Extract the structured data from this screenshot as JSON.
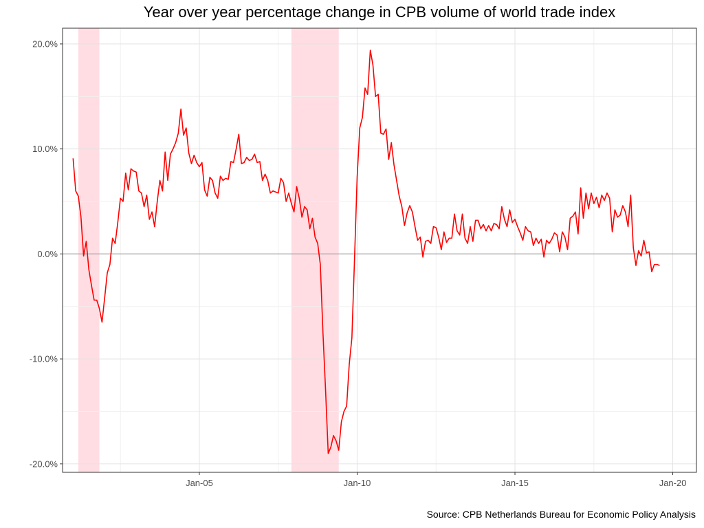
{
  "chart_data": {
    "type": "line",
    "title": "Year over year percentage change in CPB volume of world trade index",
    "caption": "Source: CPB Netherlands Bureau for Economic Policy Analysis",
    "xlabel": "",
    "ylabel": "",
    "x_tick_labels": [
      "Jan-05",
      "Jan-10",
      "Jan-15",
      "Jan-20"
    ],
    "x_tick_dates": [
      "2005-01",
      "2010-01",
      "2015-01",
      "2020-01"
    ],
    "xlim": [
      "2000-09",
      "2020-10"
    ],
    "y_tick_labels": [
      "20.0%",
      "10.0%",
      "0.0%",
      "-10.0%",
      "-20.0%"
    ],
    "y_tick_values": [
      20,
      10,
      0,
      -10,
      -20
    ],
    "ylim": [
      -20.8,
      21.5
    ],
    "grid": true,
    "recessions": [
      {
        "start": "2001-03",
        "end": "2001-11"
      },
      {
        "start": "2007-12",
        "end": "2009-06"
      }
    ],
    "series": [
      {
        "line_color": "#ff0000",
        "points": [
          [
            "2001-01",
            9.1
          ],
          [
            "2001-02",
            6.0
          ],
          [
            "2001-03",
            5.5
          ],
          [
            "2001-04",
            3.5
          ],
          [
            "2001-05",
            -0.2
          ],
          [
            "2001-06",
            1.2
          ],
          [
            "2001-07",
            -1.5
          ],
          [
            "2001-08",
            -3.0
          ],
          [
            "2001-09",
            -4.4
          ],
          [
            "2001-10",
            -4.4
          ],
          [
            "2001-11",
            -5.2
          ],
          [
            "2001-12",
            -6.5
          ],
          [
            "2002-01",
            -4.2
          ],
          [
            "2002-02",
            -1.8
          ],
          [
            "2002-03",
            -1.0
          ],
          [
            "2002-04",
            1.5
          ],
          [
            "2002-05",
            1.0
          ],
          [
            "2002-06",
            3.0
          ],
          [
            "2002-07",
            5.3
          ],
          [
            "2002-08",
            5.0
          ],
          [
            "2002-09",
            7.7
          ],
          [
            "2002-10",
            6.1
          ],
          [
            "2002-11",
            8.1
          ],
          [
            "2002-12",
            7.9
          ],
          [
            "2003-01",
            7.8
          ],
          [
            "2003-02",
            6.0
          ],
          [
            "2003-03",
            5.8
          ],
          [
            "2003-04",
            4.5
          ],
          [
            "2003-05",
            5.6
          ],
          [
            "2003-06",
            3.3
          ],
          [
            "2003-07",
            4.0
          ],
          [
            "2003-08",
            2.6
          ],
          [
            "2003-09",
            5.0
          ],
          [
            "2003-10",
            7.0
          ],
          [
            "2003-11",
            6.0
          ],
          [
            "2003-12",
            9.7
          ],
          [
            "2004-01",
            7.0
          ],
          [
            "2004-02",
            9.5
          ],
          [
            "2004-03",
            10.0
          ],
          [
            "2004-04",
            10.6
          ],
          [
            "2004-05",
            11.5
          ],
          [
            "2004-06",
            13.8
          ],
          [
            "2004-07",
            11.3
          ],
          [
            "2004-08",
            12.0
          ],
          [
            "2004-09",
            9.6
          ],
          [
            "2004-10",
            8.6
          ],
          [
            "2004-11",
            9.4
          ],
          [
            "2004-12",
            8.7
          ],
          [
            "2005-01",
            8.3
          ],
          [
            "2005-02",
            8.7
          ],
          [
            "2005-03",
            6.1
          ],
          [
            "2005-04",
            5.5
          ],
          [
            "2005-05",
            7.3
          ],
          [
            "2005-06",
            7.0
          ],
          [
            "2005-07",
            5.8
          ],
          [
            "2005-08",
            5.3
          ],
          [
            "2005-09",
            7.4
          ],
          [
            "2005-10",
            7.0
          ],
          [
            "2005-11",
            7.2
          ],
          [
            "2005-12",
            7.1
          ],
          [
            "2006-01",
            8.8
          ],
          [
            "2006-02",
            8.7
          ],
          [
            "2006-03",
            10.0
          ],
          [
            "2006-04",
            11.4
          ],
          [
            "2006-05",
            8.6
          ],
          [
            "2006-06",
            8.7
          ],
          [
            "2006-07",
            9.2
          ],
          [
            "2006-08",
            8.9
          ],
          [
            "2006-09",
            9.0
          ],
          [
            "2006-10",
            9.5
          ],
          [
            "2006-11",
            8.7
          ],
          [
            "2006-12",
            8.8
          ],
          [
            "2007-01",
            7.0
          ],
          [
            "2007-02",
            7.6
          ],
          [
            "2007-03",
            7.0
          ],
          [
            "2007-04",
            5.8
          ],
          [
            "2007-05",
            6.0
          ],
          [
            "2007-06",
            5.9
          ],
          [
            "2007-07",
            5.8
          ],
          [
            "2007-08",
            7.2
          ],
          [
            "2007-09",
            6.8
          ],
          [
            "2007-10",
            5.0
          ],
          [
            "2007-11",
            5.8
          ],
          [
            "2007-12",
            4.8
          ],
          [
            "2008-01",
            4.0
          ],
          [
            "2008-02",
            6.4
          ],
          [
            "2008-03",
            5.3
          ],
          [
            "2008-04",
            3.5
          ],
          [
            "2008-05",
            4.5
          ],
          [
            "2008-06",
            4.2
          ],
          [
            "2008-07",
            2.4
          ],
          [
            "2008-08",
            3.4
          ],
          [
            "2008-09",
            1.6
          ],
          [
            "2008-10",
            1.0
          ],
          [
            "2008-11",
            -1.0
          ],
          [
            "2008-12",
            -7.5
          ],
          [
            "2009-01",
            -13.0
          ],
          [
            "2009-02",
            -19.0
          ],
          [
            "2009-03",
            -18.4
          ],
          [
            "2009-04",
            -17.3
          ],
          [
            "2009-05",
            -17.8
          ],
          [
            "2009-06",
            -18.7
          ],
          [
            "2009-07",
            -16.0
          ],
          [
            "2009-08",
            -15.0
          ],
          [
            "2009-09",
            -14.5
          ],
          [
            "2009-10",
            -10.5
          ],
          [
            "2009-11",
            -8.0
          ],
          [
            "2009-12",
            -0.5
          ],
          [
            "2010-01",
            7.3
          ],
          [
            "2010-02",
            12.0
          ],
          [
            "2010-03",
            13.0
          ],
          [
            "2010-04",
            15.8
          ],
          [
            "2010-05",
            15.2
          ],
          [
            "2010-06",
            19.4
          ],
          [
            "2010-07",
            18.0
          ],
          [
            "2010-08",
            15.0
          ],
          [
            "2010-09",
            15.2
          ],
          [
            "2010-10",
            11.5
          ],
          [
            "2010-11",
            11.4
          ],
          [
            "2010-12",
            11.9
          ],
          [
            "2011-01",
            9.0
          ],
          [
            "2011-02",
            10.6
          ],
          [
            "2011-03",
            8.5
          ],
          [
            "2011-04",
            7.0
          ],
          [
            "2011-05",
            5.5
          ],
          [
            "2011-06",
            4.5
          ],
          [
            "2011-07",
            2.7
          ],
          [
            "2011-08",
            3.9
          ],
          [
            "2011-09",
            4.6
          ],
          [
            "2011-10",
            4.0
          ],
          [
            "2011-11",
            2.6
          ],
          [
            "2011-12",
            1.3
          ],
          [
            "2012-01",
            1.6
          ],
          [
            "2012-02",
            -0.3
          ],
          [
            "2012-03",
            1.2
          ],
          [
            "2012-04",
            1.3
          ],
          [
            "2012-05",
            1.0
          ],
          [
            "2012-06",
            2.6
          ],
          [
            "2012-07",
            2.5
          ],
          [
            "2012-08",
            1.6
          ],
          [
            "2012-09",
            0.4
          ],
          [
            "2012-10",
            2.1
          ],
          [
            "2012-11",
            1.1
          ],
          [
            "2012-12",
            1.5
          ],
          [
            "2013-01",
            1.5
          ],
          [
            "2013-02",
            3.8
          ],
          [
            "2013-03",
            2.2
          ],
          [
            "2013-04",
            1.8
          ],
          [
            "2013-05",
            3.8
          ],
          [
            "2013-06",
            1.5
          ],
          [
            "2013-07",
            1.0
          ],
          [
            "2013-08",
            2.6
          ],
          [
            "2013-09",
            1.2
          ],
          [
            "2013-10",
            3.2
          ],
          [
            "2013-11",
            3.2
          ],
          [
            "2013-12",
            2.4
          ],
          [
            "2014-01",
            2.8
          ],
          [
            "2014-02",
            2.2
          ],
          [
            "2014-03",
            2.7
          ],
          [
            "2014-04",
            2.2
          ],
          [
            "2014-05",
            2.9
          ],
          [
            "2014-06",
            2.8
          ],
          [
            "2014-07",
            2.4
          ],
          [
            "2014-08",
            4.5
          ],
          [
            "2014-09",
            3.3
          ],
          [
            "2014-10",
            2.6
          ],
          [
            "2014-11",
            4.2
          ],
          [
            "2014-12",
            3.0
          ],
          [
            "2015-01",
            3.3
          ],
          [
            "2015-02",
            2.6
          ],
          [
            "2015-03",
            2.0
          ],
          [
            "2015-04",
            1.3
          ],
          [
            "2015-05",
            2.6
          ],
          [
            "2015-06",
            2.2
          ],
          [
            "2015-07",
            2.1
          ],
          [
            "2015-08",
            0.8
          ],
          [
            "2015-09",
            1.5
          ],
          [
            "2015-10",
            1.0
          ],
          [
            "2015-11",
            1.4
          ],
          [
            "2015-12",
            -0.3
          ],
          [
            "2016-01",
            1.3
          ],
          [
            "2016-02",
            1.0
          ],
          [
            "2016-03",
            1.4
          ],
          [
            "2016-04",
            2.0
          ],
          [
            "2016-05",
            1.8
          ],
          [
            "2016-06",
            0.2
          ],
          [
            "2016-07",
            2.1
          ],
          [
            "2016-08",
            1.6
          ],
          [
            "2016-09",
            0.4
          ],
          [
            "2016-10",
            3.4
          ],
          [
            "2016-11",
            3.6
          ],
          [
            "2016-12",
            4.0
          ],
          [
            "2017-01",
            1.9
          ],
          [
            "2017-02",
            6.3
          ],
          [
            "2017-03",
            3.4
          ],
          [
            "2017-04",
            5.8
          ],
          [
            "2017-05",
            4.3
          ],
          [
            "2017-06",
            5.8
          ],
          [
            "2017-07",
            4.8
          ],
          [
            "2017-08",
            5.4
          ],
          [
            "2017-09",
            4.4
          ],
          [
            "2017-10",
            5.6
          ],
          [
            "2017-11",
            5.1
          ],
          [
            "2017-12",
            5.8
          ],
          [
            "2018-01",
            5.3
          ],
          [
            "2018-02",
            2.1
          ],
          [
            "2018-03",
            4.2
          ],
          [
            "2018-04",
            3.5
          ],
          [
            "2018-05",
            3.7
          ],
          [
            "2018-06",
            4.6
          ],
          [
            "2018-07",
            4.0
          ],
          [
            "2018-08",
            2.6
          ],
          [
            "2018-09",
            5.6
          ],
          [
            "2018-10",
            0.6
          ],
          [
            "2018-11",
            -1.1
          ],
          [
            "2018-12",
            0.3
          ],
          [
            "2019-01",
            -0.2
          ],
          [
            "2019-02",
            1.3
          ],
          [
            "2019-03",
            0.1
          ],
          [
            "2019-04",
            0.2
          ],
          [
            "2019-05",
            -1.7
          ],
          [
            "2019-06",
            -1.0
          ],
          [
            "2019-07",
            -1.0
          ],
          [
            "2019-08",
            -1.1
          ]
        ]
      }
    ]
  }
}
